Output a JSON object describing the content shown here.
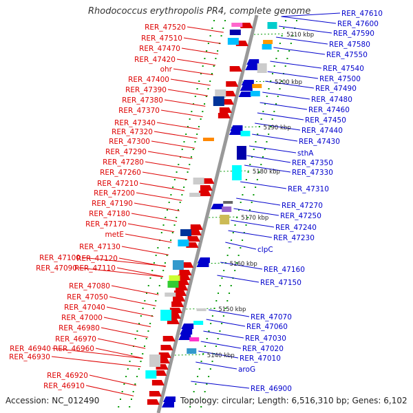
{
  "title": "Rhodococcus erythropolis PR4, complete genome",
  "accession_text": "Accession: NC_012490",
  "topology_text": "Topology: circular; Length: 6,516,310 bp; Genes: 6,102",
  "colors": {
    "left_genes": "#dd0000",
    "right_genes": "#0000cc",
    "backbone": "#999999",
    "ticks": "#009900"
  },
  "scale_markers": [
    "5210 kbp",
    "5200 kbp",
    "5190 kbp",
    "5180 kbp",
    "5170 kbp",
    "5160 kbp",
    "5150 kbp",
    "5140 kbp"
  ],
  "left_labels": [
    "RER_47520",
    "RER_47510",
    "RER_47470",
    "RER_47420",
    "ohr",
    "RER_47400",
    "RER_47390",
    "RER_47380",
    "RER_47370",
    "RER_47340",
    "RER_47320",
    "RER_47300",
    "RER_47290",
    "RER_47280",
    "RER_47260",
    "RER_47210",
    "RER_47200",
    "RER_47190",
    "RER_47180",
    "RER_47170",
    "metE",
    "RER_47130",
    "RER_47120",
    "RER_47100",
    "RER_47110",
    "RER_47090",
    "RER_47080",
    "RER_47050",
    "RER_47040",
    "RER_47000",
    "RER_46980",
    "RER_46970",
    "RER_46960",
    "RER_46940",
    "RER_46930",
    "RER_46920",
    "RER_46910"
  ],
  "right_labels": [
    "RER_47610",
    "RER_47600",
    "RER_47590",
    "RER_47580",
    "RER_47550",
    "RER_47540",
    "RER_47500",
    "RER_47490",
    "RER_47480",
    "RER_47460",
    "RER_47450",
    "RER_47440",
    "RER_47430",
    "sthA",
    "RER_47350",
    "RER_47330",
    "RER_47310",
    "RER_47270",
    "RER_47250",
    "RER_47240",
    "RER_47230",
    "clpC",
    "RER_47160",
    "RER_47150",
    "RER_47070",
    "RER_47060",
    "RER_47030",
    "RER_47020",
    "RER_47010",
    "aroG",
    "RER_46900"
  ]
}
